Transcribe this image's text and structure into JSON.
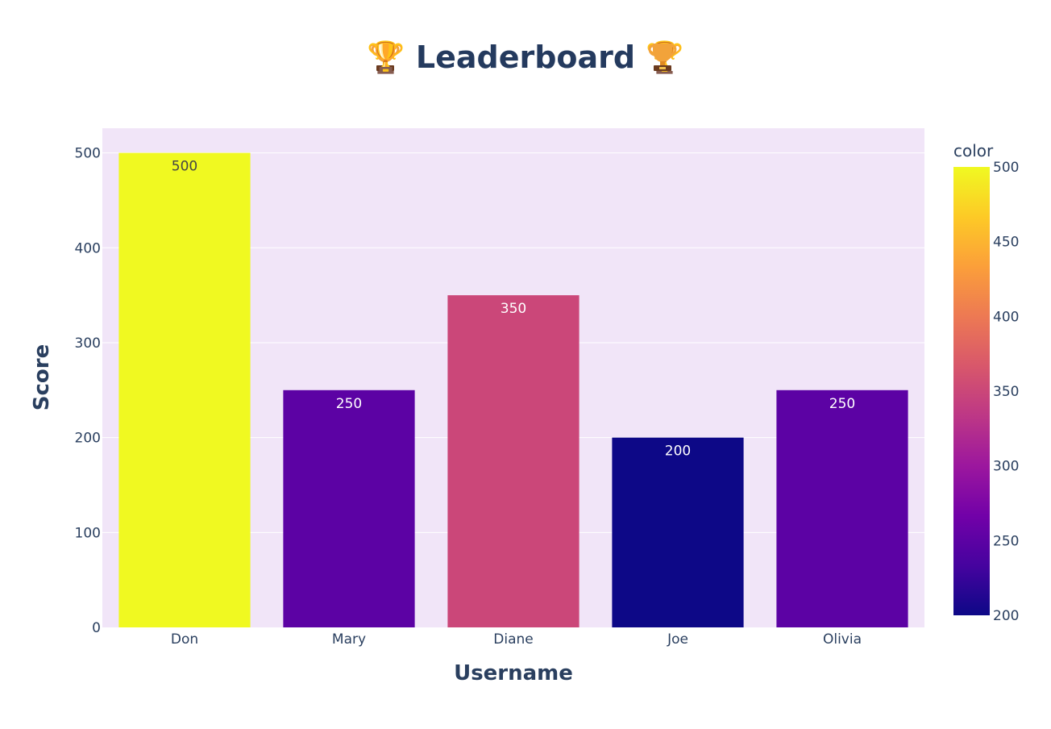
{
  "chart_data": {
    "type": "bar",
    "title": "🏆 Leaderboard 🏆",
    "xlabel": "Username",
    "ylabel": "Score",
    "categories": [
      "Don",
      "Mary",
      "Diane",
      "Joe",
      "Olivia"
    ],
    "values": [
      500,
      250,
      350,
      200,
      250
    ],
    "data_labels": [
      "500",
      "250",
      "350",
      "200",
      "250"
    ],
    "ylim": [
      0,
      526
    ],
    "y_ticks": [
      0,
      100,
      200,
      300,
      400,
      500
    ],
    "grid": true,
    "plot_background": "#f1e5f8",
    "colorbar": {
      "title": "color",
      "range": [
        200,
        500
      ],
      "ticks": [
        200,
        250,
        300,
        350,
        400,
        450,
        500
      ],
      "colorscale": [
        "#0d0887",
        "#46039f",
        "#7201a8",
        "#9c179e",
        "#bd3786",
        "#d8576b",
        "#ed7953",
        "#fb9f3a",
        "#fdca26",
        "#f0f921"
      ]
    }
  }
}
